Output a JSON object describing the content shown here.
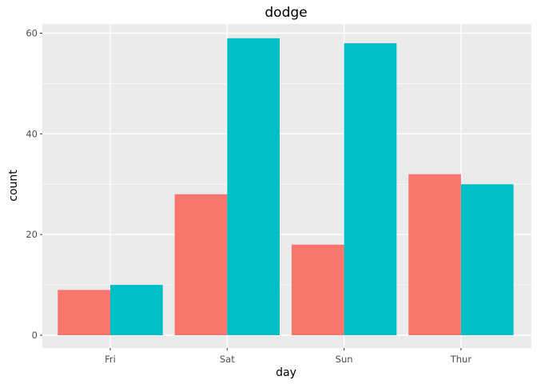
{
  "chart_data": {
    "type": "bar",
    "title": "dodge",
    "xlabel": "day",
    "ylabel": "count",
    "categories": [
      "Fri",
      "Sat",
      "Sun",
      "Thur"
    ],
    "series": [
      {
        "values": [
          9,
          28,
          18,
          32
        ],
        "color": "#F8766D"
      },
      {
        "values": [
          10,
          59,
          58,
          30
        ],
        "color": "#00BFC4"
      }
    ],
    "ylim": [
      0,
      62
    ],
    "yticks": [
      0,
      20,
      40,
      60
    ],
    "grid": true,
    "legend": "none",
    "panel_background": "#EBEBEB"
  }
}
